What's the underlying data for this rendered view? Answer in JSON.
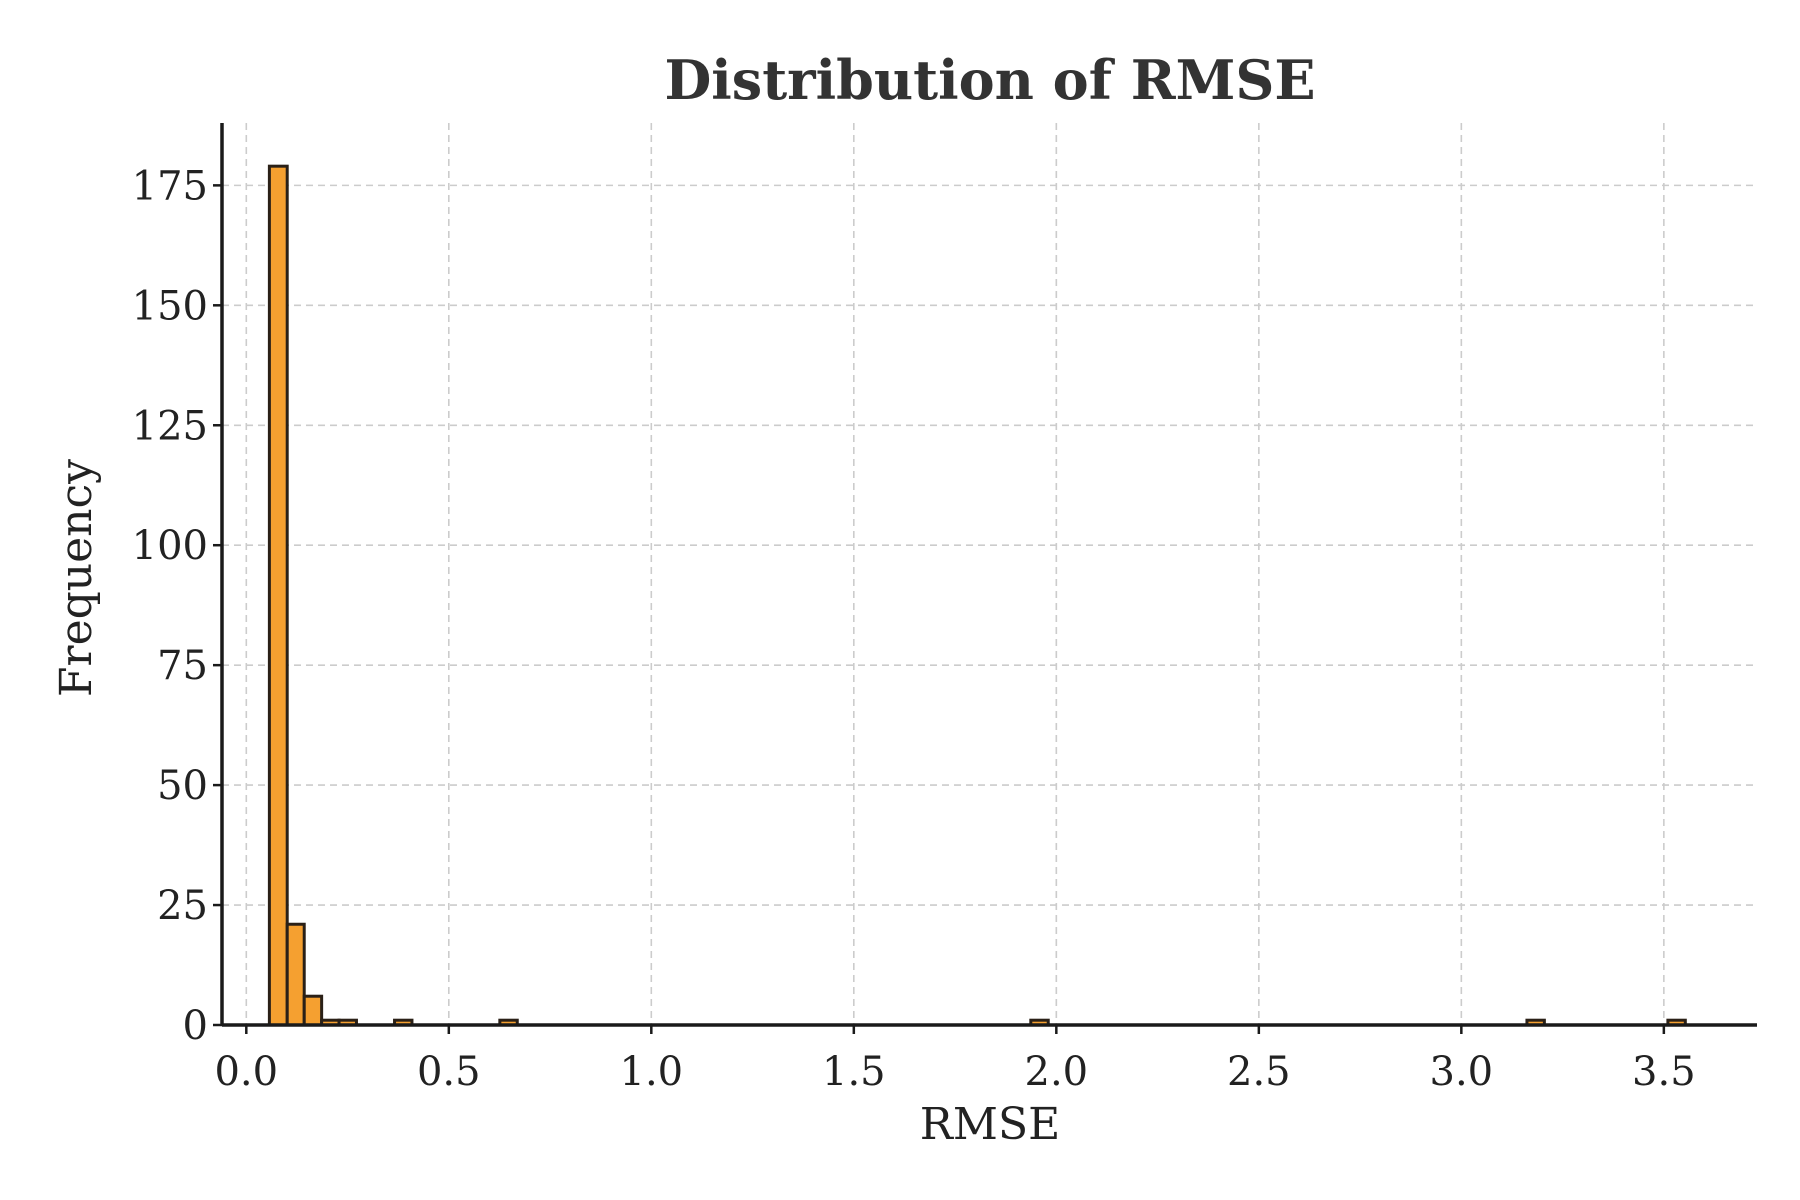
{
  "chart_data": {
    "type": "bar",
    "subtype": "histogram",
    "title": "Distribution of RMSE",
    "xlabel": "RMSE",
    "ylabel": "Frequency",
    "xlim": [
      -0.06,
      3.73
    ],
    "ylim": [
      0,
      188
    ],
    "xticks": [
      0.0,
      0.5,
      1.0,
      1.5,
      2.0,
      2.5,
      3.0,
      3.5
    ],
    "xtick_labels": [
      "0.0",
      "0.5",
      "1.0",
      "1.5",
      "2.0",
      "2.5",
      "3.0",
      "3.5"
    ],
    "yticks": [
      0,
      25,
      50,
      75,
      100,
      125,
      150,
      175
    ],
    "ytick_labels": [
      "0",
      "25",
      "50",
      "75",
      "100",
      "125",
      "150",
      "175"
    ],
    "grid": true,
    "legend": "none",
    "bar_color": "#f5a030",
    "edge_color": "#2a2017",
    "bins": [
      {
        "x0": 0.057,
        "x1": 0.101,
        "count": 179
      },
      {
        "x0": 0.101,
        "x1": 0.143,
        "count": 21
      },
      {
        "x0": 0.143,
        "x1": 0.186,
        "count": 6
      },
      {
        "x0": 0.186,
        "x1": 0.229,
        "count": 1
      },
      {
        "x0": 0.229,
        "x1": 0.272,
        "count": 1
      },
      {
        "x0": 0.366,
        "x1": 0.409,
        "count": 1
      },
      {
        "x0": 0.626,
        "x1": 0.669,
        "count": 1
      },
      {
        "x0": 1.937,
        "x1": 1.98,
        "count": 1
      },
      {
        "x0": 3.162,
        "x1": 3.205,
        "count": 1
      },
      {
        "x0": 3.51,
        "x1": 3.553,
        "count": 1
      }
    ]
  }
}
